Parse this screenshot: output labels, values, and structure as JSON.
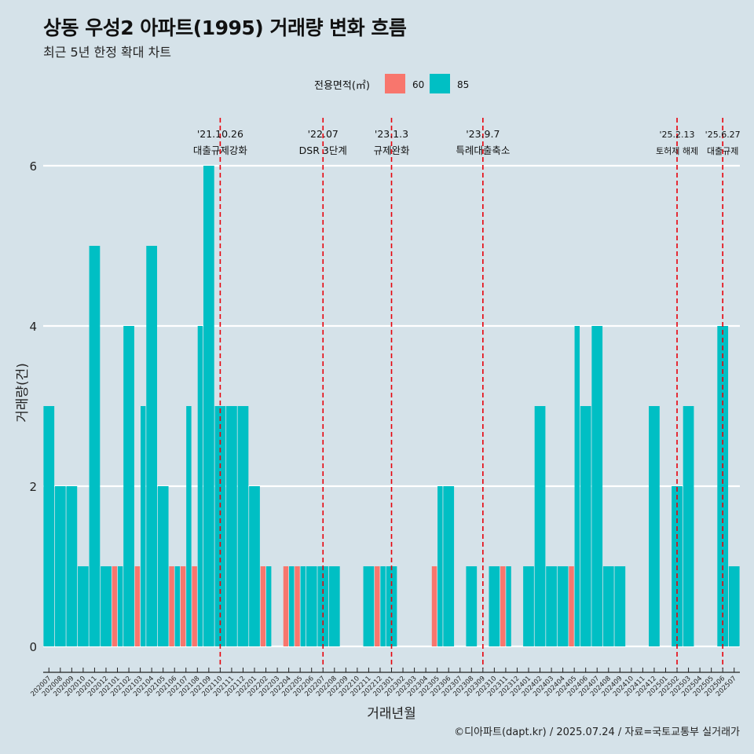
{
  "title": "상동 우성2 아파트(1995) 거래량 변화 흐름",
  "subtitle": "최근 5년 한정 확대 차트",
  "caption": "©디아파트(dapt.kr) / 2025.07.24 / 자료=국토교통부 실거래가",
  "legend": {
    "title": "전용면적(㎡)",
    "placement": "top",
    "items": [
      {
        "label": "60",
        "color": "#f8766d"
      },
      {
        "label": "85",
        "color": "#00bfc4"
      }
    ]
  },
  "colors": {
    "background": "#d5e2e9",
    "grid": "#ffffff",
    "event_line": "#e8000b",
    "series_60": "#f8766d",
    "series_85": "#00bfc4"
  },
  "chart_data": {
    "type": "bar",
    "stacked": false,
    "position": "dodge",
    "xlabel": "거래년월",
    "ylabel": "거래량(건)",
    "ylim": [
      0,
      6
    ],
    "yticks": [
      0,
      2,
      4,
      6
    ],
    "grid": true,
    "categories": [
      "202007",
      "202008",
      "202009",
      "202010",
      "202011",
      "202012",
      "202101",
      "202102",
      "202103",
      "202104",
      "202105",
      "202106",
      "202107",
      "202108",
      "202109",
      "202110",
      "202111",
      "202112",
      "202201",
      "202202",
      "202203",
      "202204",
      "202205",
      "202206",
      "202207",
      "202208",
      "202209",
      "202210",
      "202211",
      "202212",
      "202301",
      "202302",
      "202303",
      "202304",
      "202305",
      "202306",
      "202307",
      "202308",
      "202309",
      "202310",
      "202311",
      "202312",
      "202401",
      "202402",
      "202403",
      "202404",
      "202405",
      "202406",
      "202407",
      "202408",
      "202409",
      "202410",
      "202411",
      "202412",
      "202501",
      "202502",
      "202503",
      "202504",
      "202505",
      "202506",
      "202507"
    ],
    "series": [
      {
        "name": "60",
        "color": "#f8766d",
        "values": [
          0,
          0,
          0,
          0,
          0,
          0,
          1,
          0,
          1,
          0,
          0,
          1,
          1,
          1,
          0,
          0,
          0,
          0,
          0,
          1,
          0,
          1,
          1,
          0,
          0,
          0,
          0,
          0,
          0,
          1,
          0,
          0,
          0,
          0,
          1,
          0,
          0,
          0,
          0,
          0,
          1,
          0,
          0,
          0,
          0,
          0,
          1,
          0,
          0,
          0,
          0,
          0,
          0,
          0,
          0,
          0,
          0,
          0,
          0,
          0,
          0
        ]
      },
      {
        "name": "85",
        "color": "#00bfc4",
        "values": [
          3,
          2,
          2,
          1,
          5,
          1,
          1,
          4,
          3,
          5,
          2,
          1,
          3,
          4,
          6,
          3,
          3,
          3,
          2,
          1,
          0,
          1,
          1,
          1,
          1,
          1,
          0,
          0,
          1,
          1,
          1,
          0,
          0,
          0,
          2,
          2,
          0,
          1,
          0,
          1,
          1,
          0,
          1,
          3,
          1,
          1,
          4,
          3,
          4,
          1,
          1,
          0,
          0,
          3,
          0,
          2,
          3,
          0,
          0,
          4,
          1
        ]
      }
    ],
    "annotations": [
      {
        "date": "'21.10.26",
        "label": "대출규제강화",
        "category": "202110"
      },
      {
        "date": "'22.07",
        "label": "DSR 3단계",
        "category": "202207"
      },
      {
        "date": "'23.1.3",
        "label": "규제완화",
        "category": "202301"
      },
      {
        "date": "'23.9.7",
        "label": "특례대출축소",
        "category": "202309"
      },
      {
        "date": "'25.2.13",
        "label": "토허제 해제",
        "category": "202502"
      },
      {
        "date": "'25.6.27",
        "label": "대출규제",
        "category": "202506"
      }
    ]
  }
}
